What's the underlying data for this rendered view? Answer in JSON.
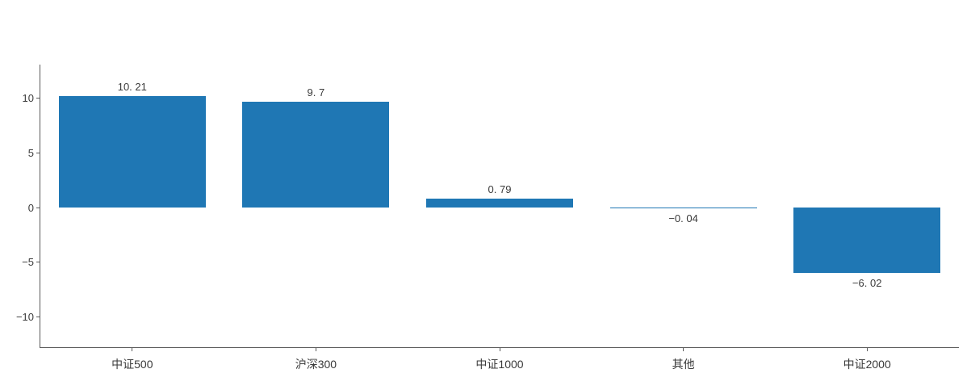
{
  "chart_data": {
    "type": "bar",
    "title": "",
    "xlabel": "",
    "ylabel": "",
    "categories": [
      "中证500",
      "沪深300",
      "中证1000",
      "其他",
      "中证2000"
    ],
    "values": [
      10.21,
      9.7,
      0.79,
      -0.04,
      -6.02
    ],
    "value_labels": [
      "10. 21",
      "9. 7",
      "0. 79",
      "−0. 04",
      "−6. 02"
    ],
    "yticks": [
      10,
      5,
      0,
      -5,
      -10
    ],
    "ytick_labels": [
      "10",
      "5",
      "0",
      "−5",
      "−10"
    ],
    "ylim": [
      -12.8,
      13.1
    ],
    "grid": false,
    "legend": "none",
    "bar_width_fraction": 0.8,
    "colors": {
      "bar": "#1f77b4",
      "axis": "#5a5a5a",
      "text": "#3a3a3a",
      "background": "#ffffff"
    }
  }
}
